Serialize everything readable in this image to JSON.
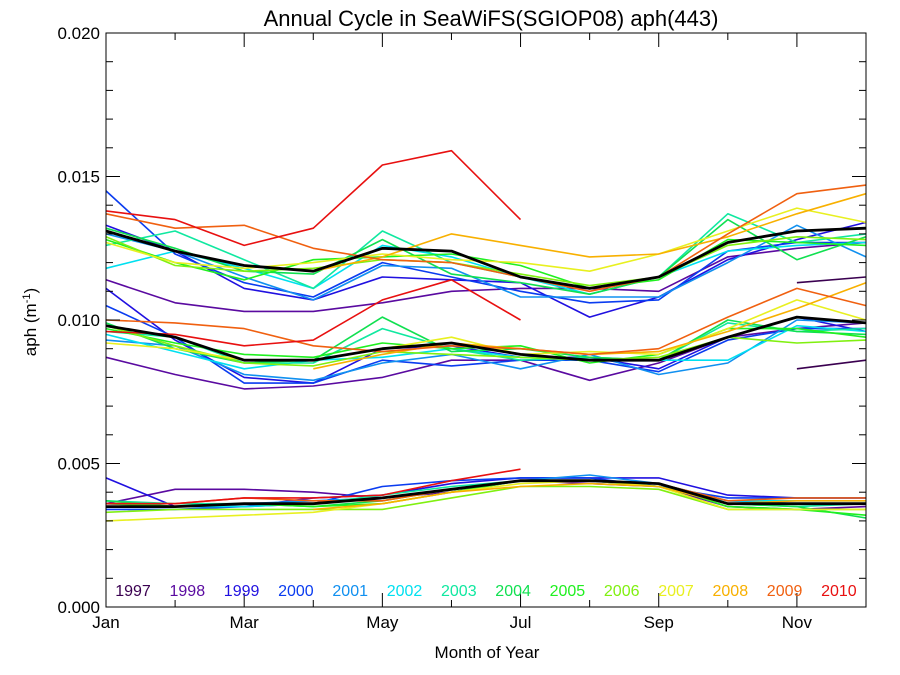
{
  "chart_data": {
    "type": "line",
    "title": "Annual Cycle in SeaWiFS(SGIOP08) aph(443)",
    "xlabel": "Month of Year",
    "ylabel": "aph (m",
    "ylabel_sup": "-1",
    "ylabel_close": ")",
    "xlim": [
      1,
      12
    ],
    "ylim": [
      0,
      0.02
    ],
    "x_ticks": [
      {
        "label": "Jan",
        "value": 1
      },
      {
        "label": "Mar",
        "value": 3
      },
      {
        "label": "May",
        "value": 5
      },
      {
        "label": "Jul",
        "value": 7
      },
      {
        "label": "Sep",
        "value": 9
      },
      {
        "label": "Nov",
        "value": 11
      }
    ],
    "x_minor_ticks": [
      2,
      4,
      6,
      8,
      10,
      12
    ],
    "y_ticks": [
      {
        "label": "0.000",
        "value": 0
      },
      {
        "label": "0.005",
        "value": 0.005
      },
      {
        "label": "0.010",
        "value": 0.01
      },
      {
        "label": "0.015",
        "value": 0.015
      },
      {
        "label": "0.020",
        "value": 0.02
      }
    ],
    "y_minor_step": 0.001,
    "grid": false,
    "legend_position": "bottom",
    "x": [
      1,
      2,
      3,
      4,
      5,
      6,
      7,
      8,
      9,
      10,
      11,
      12
    ],
    "series": [
      {
        "name": "1997",
        "color": "#3a0050",
        "upper": [
          null,
          null,
          null,
          null,
          null,
          null,
          null,
          null,
          null,
          null,
          0.0113,
          0.0115
        ],
        "middle": [
          null,
          null,
          null,
          null,
          null,
          null,
          null,
          null,
          null,
          null,
          0.0083,
          0.0086
        ],
        "lower": [
          null,
          null,
          null,
          null,
          null,
          null,
          null,
          null,
          null,
          null,
          null,
          null
        ]
      },
      {
        "name": "1998",
        "color": "#5a0aa0",
        "upper": [
          0.0114,
          0.0106,
          0.0103,
          0.0103,
          0.0106,
          0.011,
          0.0111,
          0.0111,
          0.011,
          0.0122,
          0.0125,
          0.0127
        ],
        "middle": [
          0.0087,
          0.0081,
          0.0076,
          0.0077,
          0.008,
          0.0086,
          0.0086,
          0.0079,
          0.0085,
          0.0094,
          0.0097,
          0.0099
        ],
        "lower": [
          0.0036,
          0.0041,
          0.0041,
          0.004,
          0.0038,
          0.004,
          0.0044,
          0.0043,
          0.0042,
          0.0035,
          0.0034,
          0.0035
        ]
      },
      {
        "name": "1999",
        "color": "#2010e0",
        "upper": [
          0.0133,
          0.0124,
          0.0111,
          0.0107,
          0.0115,
          0.0114,
          0.0113,
          0.0101,
          0.0108,
          0.0121,
          0.0128,
          0.0134
        ],
        "middle": [
          0.0111,
          0.0093,
          0.008,
          0.0078,
          0.009,
          0.0091,
          0.0087,
          0.0087,
          0.0083,
          0.0094,
          0.0101,
          0.0096
        ],
        "lower": [
          0.0045,
          0.0035,
          0.0035,
          0.0038,
          0.0039,
          0.0043,
          0.0045,
          0.0045,
          0.0045,
          0.0039,
          0.0038,
          0.0038
        ]
      },
      {
        "name": "2000",
        "color": "#0a3cf0",
        "upper": [
          0.0145,
          0.0123,
          0.0113,
          0.0108,
          0.012,
          0.0115,
          0.011,
          0.0106,
          0.0107,
          0.0124,
          0.0127,
          0.0127
        ],
        "middle": [
          0.0105,
          0.0094,
          0.0078,
          0.0078,
          0.0086,
          0.0084,
          0.0086,
          0.0086,
          0.0082,
          0.0093,
          0.0097,
          0.0097
        ],
        "lower": [
          0.0034,
          0.0034,
          0.0035,
          0.0036,
          0.0042,
          0.0044,
          0.0045,
          0.0045,
          0.0042,
          0.0038,
          0.0038,
          0.0038
        ]
      },
      {
        "name": "2001",
        "color": "#1090f0",
        "upper": [
          0.013,
          0.0124,
          0.0115,
          0.0107,
          0.0119,
          0.0118,
          0.0108,
          0.0108,
          0.0108,
          0.012,
          0.0133,
          0.0122
        ],
        "middle": [
          0.0093,
          0.0091,
          0.0081,
          0.0079,
          0.0085,
          0.0088,
          0.0083,
          0.0088,
          0.0081,
          0.0085,
          0.01,
          0.0099
        ],
        "lower": [
          0.0035,
          0.0035,
          0.0036,
          0.0037,
          0.0038,
          0.0041,
          0.0044,
          0.0046,
          0.0043,
          0.0037,
          0.0036,
          0.0036
        ]
      },
      {
        "name": "2002",
        "color": "#00e0f0",
        "upper": [
          0.0118,
          0.0124,
          0.0118,
          0.0111,
          0.0126,
          0.0122,
          0.0115,
          0.0109,
          0.0115,
          0.0124,
          0.0126,
          0.0127
        ],
        "middle": [
          0.0095,
          0.0089,
          0.0083,
          0.0086,
          0.0087,
          0.009,
          0.0087,
          0.0086,
          0.0086,
          0.0086,
          0.0098,
          0.0096
        ],
        "lower": [
          0.0036,
          0.0035,
          0.0035,
          0.0036,
          0.0038,
          0.0041,
          0.0044,
          0.0044,
          0.0042,
          0.0037,
          0.0037,
          0.0037
        ]
      },
      {
        "name": "2003",
        "color": "#10e8a0",
        "upper": [
          0.0126,
          0.0131,
          0.0121,
          0.0111,
          0.0131,
          0.012,
          0.0115,
          0.0111,
          0.0115,
          0.0137,
          0.0127,
          0.013
        ],
        "middle": [
          0.0096,
          0.0094,
          0.0085,
          0.0085,
          0.0097,
          0.009,
          0.0086,
          0.0087,
          0.0086,
          0.0099,
          0.0096,
          0.0097
        ],
        "lower": [
          0.0037,
          0.0036,
          0.0036,
          0.0036,
          0.0039,
          0.0042,
          0.0044,
          0.0044,
          0.0042,
          0.0036,
          0.0035,
          0.0036
        ]
      },
      {
        "name": "2004",
        "color": "#10e050",
        "upper": [
          0.0132,
          0.0125,
          0.0117,
          0.0116,
          0.0128,
          0.0116,
          0.0113,
          0.0109,
          0.0115,
          0.0135,
          0.0121,
          0.0129
        ],
        "middle": [
          0.0099,
          0.009,
          0.0085,
          0.0086,
          0.0101,
          0.0089,
          0.009,
          0.0087,
          0.0086,
          0.01,
          0.0096,
          0.0095
        ],
        "lower": [
          0.0037,
          0.0035,
          0.0036,
          0.0035,
          0.0037,
          0.0041,
          0.0044,
          0.0044,
          0.0043,
          0.0036,
          0.0035,
          0.0031
        ]
      },
      {
        "name": "2005",
        "color": "#20f020",
        "upper": [
          0.0128,
          0.012,
          0.0114,
          0.0121,
          0.0122,
          0.0123,
          0.0119,
          0.0111,
          0.0114,
          0.0128,
          0.0127,
          0.0126
        ],
        "middle": [
          0.0097,
          0.0092,
          0.0088,
          0.0087,
          0.0092,
          0.009,
          0.0091,
          0.0085,
          0.0088,
          0.0097,
          0.0097,
          0.0094
        ],
        "lower": [
          0.0036,
          0.0035,
          0.0036,
          0.0035,
          0.0036,
          0.004,
          0.0044,
          0.0044,
          0.0043,
          0.0035,
          0.0034,
          0.0032
        ]
      },
      {
        "name": "2006",
        "color": "#80f010",
        "upper": [
          0.0129,
          0.0119,
          0.0117,
          0.0118,
          0.0121,
          0.012,
          0.0116,
          0.0112,
          0.0115,
          0.0126,
          0.0129,
          0.0128
        ],
        "middle": [
          0.0098,
          0.0091,
          0.0085,
          0.0084,
          0.0089,
          0.0088,
          0.0087,
          0.0086,
          0.0087,
          0.0094,
          0.0092,
          0.0093
        ],
        "lower": [
          0.0033,
          0.0034,
          0.0034,
          0.0034,
          0.0034,
          0.0038,
          0.0042,
          0.0042,
          0.0041,
          0.0034,
          0.0034,
          0.0034
        ]
      },
      {
        "name": "2007",
        "color": "#e8f020",
        "upper": [
          0.0127,
          0.012,
          0.0118,
          0.012,
          0.0123,
          0.0121,
          0.012,
          0.0117,
          0.0123,
          0.0131,
          0.0139,
          0.0134
        ],
        "middle": [
          0.0092,
          0.009,
          0.0086,
          0.0086,
          0.009,
          0.0094,
          0.0088,
          0.0089,
          0.0088,
          0.0097,
          0.0107,
          0.01
        ],
        "lower": [
          0.003,
          0.0031,
          0.0032,
          0.0033,
          0.0036,
          0.004,
          0.0043,
          0.0044,
          0.0042,
          0.0034,
          0.0034,
          0.0034
        ]
      },
      {
        "name": "2008",
        "color": "#f8b000",
        "upper": [
          null,
          null,
          null,
          0.0117,
          0.0122,
          0.013,
          0.0126,
          0.0122,
          0.0123,
          0.0129,
          0.0137,
          0.0144
        ],
        "middle": [
          null,
          null,
          null,
          0.0083,
          0.0088,
          0.0092,
          0.009,
          0.0088,
          0.0089,
          0.0096,
          0.0104,
          0.0113
        ],
        "lower": [
          null,
          null,
          null,
          0.0034,
          0.0036,
          0.004,
          0.0042,
          0.0043,
          0.0042,
          0.0036,
          0.0037,
          0.0037
        ]
      },
      {
        "name": "2009",
        "color": "#f06010",
        "upper": [
          0.0137,
          0.0132,
          0.0133,
          0.0125,
          0.0121,
          0.012,
          0.0115,
          0.011,
          0.0115,
          0.013,
          0.0144,
          0.0147
        ],
        "middle": [
          0.01,
          0.0099,
          0.0097,
          0.0091,
          0.0089,
          0.0091,
          0.009,
          0.0088,
          0.009,
          0.0101,
          0.0111,
          0.0105
        ],
        "lower": [
          0.0036,
          0.0036,
          0.0038,
          0.0037,
          0.0037,
          0.0041,
          0.0044,
          0.0044,
          0.0043,
          0.0037,
          0.0038,
          0.0038
        ]
      },
      {
        "name": "2010",
        "color": "#e81010",
        "upper": [
          0.0138,
          0.0135,
          0.0126,
          0.0132,
          0.0154,
          0.0159,
          0.0135,
          null,
          null,
          null,
          null,
          null
        ],
        "middle": [
          0.0096,
          0.0095,
          0.0091,
          0.0093,
          0.0107,
          0.0114,
          0.01,
          null,
          null,
          null,
          null,
          null
        ],
        "lower": [
          0.0036,
          0.0036,
          0.0038,
          0.0038,
          0.0039,
          0.0044,
          0.0048,
          null,
          null,
          null,
          null,
          null
        ]
      }
    ],
    "mean": {
      "color": "#000000",
      "upper": [
        0.0131,
        0.0124,
        0.0119,
        0.0117,
        0.0125,
        0.0124,
        0.0115,
        0.0111,
        0.0115,
        0.0127,
        0.0131,
        0.0132
      ],
      "middle": [
        0.0098,
        0.0094,
        0.0086,
        0.0086,
        0.009,
        0.0092,
        0.0088,
        0.0086,
        0.0086,
        0.0094,
        0.0101,
        0.0099
      ],
      "lower": [
        0.0035,
        0.0035,
        0.0036,
        0.0036,
        0.0038,
        0.0041,
        0.0044,
        0.0044,
        0.0043,
        0.0036,
        0.0036,
        0.0036
      ]
    }
  }
}
